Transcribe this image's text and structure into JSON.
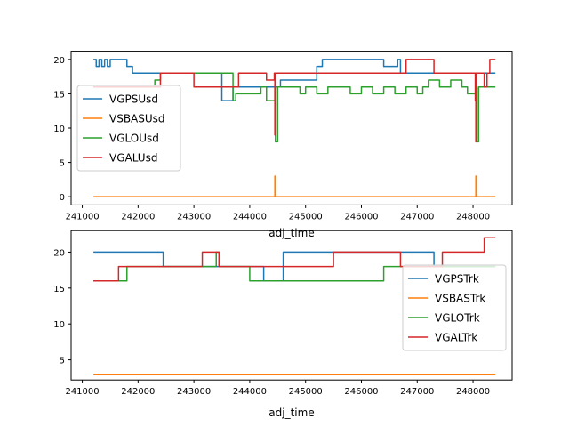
{
  "chart_data": [
    {
      "type": "line",
      "xlabel": "adj_time",
      "ylabel": "",
      "xlim": [
        240800,
        248700
      ],
      "ylim": [
        -1.2,
        21.2
      ],
      "xticks": [
        241000,
        242000,
        243000,
        244000,
        245000,
        246000,
        247000,
        248000
      ],
      "xtick_labels": [
        "241000",
        "242000",
        "243000",
        "244000",
        "245000",
        "246000",
        "247000",
        "248000"
      ],
      "yticks": [
        0,
        5,
        10,
        15,
        20
      ],
      "ytick_labels": [
        "0",
        "5",
        "10",
        "15",
        "20"
      ],
      "grid": false,
      "legend_position": "center-left",
      "series": [
        {
          "name": "VGPSUsd",
          "color": "#1f77b4",
          "x": [
            241200,
            241250,
            241300,
            241350,
            241400,
            241450,
            241500,
            241550,
            241800,
            241900,
            242000,
            243500,
            243650,
            243700,
            244500,
            244550,
            245200,
            245300,
            245600,
            246400,
            246650,
            246700,
            247000,
            247800,
            248400
          ],
          "y": [
            20,
            19,
            20,
            19,
            20,
            19,
            20,
            20,
            19,
            18,
            18,
            14,
            14,
            16,
            16,
            17,
            19,
            20,
            20,
            19,
            20,
            18,
            18,
            18,
            18
          ]
        },
        {
          "name": "VSBASUsd",
          "color": "#ff7f0e",
          "x": [
            241200,
            244440,
            244450,
            244460,
            248040,
            248050,
            248060,
            248400
          ],
          "y": [
            0,
            0,
            3,
            0,
            0,
            3,
            0,
            0
          ]
        },
        {
          "name": "VGLOUsd",
          "color": "#2ca02c",
          "x": [
            241200,
            242200,
            242300,
            242400,
            243600,
            243700,
            243750,
            244200,
            244300,
            244450,
            244460,
            244500,
            244900,
            245000,
            245200,
            245400,
            245800,
            246000,
            246200,
            246400,
            246600,
            246800,
            247000,
            247100,
            247200,
            247400,
            247600,
            247800,
            247900,
            248060,
            248070,
            248100,
            248400
          ],
          "y": [
            16,
            16,
            17,
            18,
            18,
            14,
            15,
            16,
            14,
            16,
            8,
            16,
            15,
            16,
            15,
            16,
            15,
            16,
            15,
            16,
            15,
            16,
            15,
            16,
            17,
            16,
            17,
            16,
            15,
            16,
            8,
            16,
            16
          ]
        },
        {
          "name": "VGALUsd",
          "color": "#d62728",
          "x": [
            241200,
            242300,
            242400,
            243000,
            243600,
            243800,
            244200,
            244300,
            244440,
            244450,
            244460,
            244600,
            246100,
            246800,
            247300,
            247900,
            248040,
            248050,
            248060,
            248200,
            248250,
            248300,
            248400
          ],
          "y": [
            16,
            16,
            18,
            16,
            16,
            18,
            18,
            17,
            18,
            9,
            18,
            18,
            18,
            20,
            18,
            18,
            14,
            8,
            18,
            16,
            18,
            20,
            20
          ]
        }
      ]
    },
    {
      "type": "line",
      "xlabel": "adj_time",
      "ylabel": "",
      "xlim": [
        240800,
        248700
      ],
      "ylim": [
        2.2,
        23.0
      ],
      "xticks": [
        241000,
        242000,
        243000,
        244000,
        245000,
        246000,
        247000,
        248000
      ],
      "xtick_labels": [
        "241000",
        "242000",
        "243000",
        "244000",
        "245000",
        "246000",
        "247000",
        "248000"
      ],
      "yticks": [
        5,
        10,
        15,
        20
      ],
      "ytick_labels": [
        "5",
        "10",
        "15",
        "20"
      ],
      "grid": false,
      "legend_position": "center-right",
      "series": [
        {
          "name": "VGPSTrk",
          "color": "#1f77b4",
          "x": [
            241200,
            242400,
            242450,
            244000,
            244250,
            244600,
            247250,
            247300,
            248400
          ],
          "y": [
            20,
            20,
            18,
            18,
            16,
            20,
            20,
            18,
            18
          ]
        },
        {
          "name": "VSBASTrk",
          "color": "#ff7f0e",
          "x": [
            241200,
            248400
          ],
          "y": [
            3,
            3
          ]
        },
        {
          "name": "VGLOTrk",
          "color": "#2ca02c",
          "x": [
            241200,
            241700,
            241800,
            243300,
            243400,
            243450,
            243950,
            244000,
            246300,
            246400,
            248400
          ],
          "y": [
            16,
            16,
            18,
            18,
            20,
            18,
            18,
            16,
            16,
            18,
            18
          ]
        },
        {
          "name": "VGALTrk",
          "color": "#d62728",
          "x": [
            241200,
            241650,
            243150,
            243450,
            245500,
            246700,
            247450,
            248200,
            248400
          ],
          "y": [
            16,
            18,
            20,
            18,
            20,
            18,
            20,
            22,
            22
          ]
        }
      ]
    }
  ]
}
